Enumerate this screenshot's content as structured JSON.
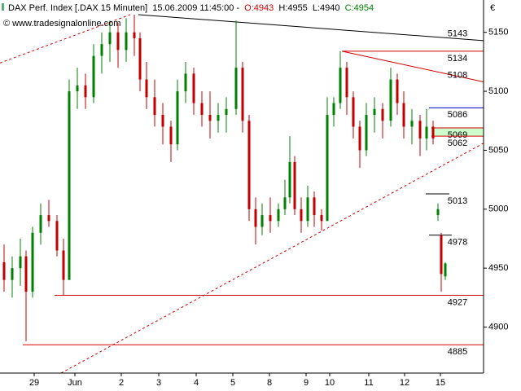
{
  "chart_data": {
    "type": "candlestick",
    "header": {
      "instrument": "DAX Perf. Index [.DAX  15 Minuten]",
      "datetime": "15.06.2009 11:45:00 -",
      "open": "O:4943",
      "high": "H:4955",
      "low": "L:4940",
      "close": "C:4954"
    },
    "watermark": "© www.tradesignalonline.com",
    "currency": "€",
    "up_color": "#008000",
    "down_color": "#c00000",
    "xlim": [
      0,
      594
    ],
    "ylim": [
      4861,
      5165
    ],
    "yticks": [
      4900,
      4950,
      5000,
      5050,
      5100,
      5150
    ],
    "xticks": [
      {
        "value": 42,
        "label": "29"
      },
      {
        "value": 92,
        "label": "Jun"
      },
      {
        "value": 149,
        "label": "2"
      },
      {
        "value": 195,
        "label": "3"
      },
      {
        "value": 241,
        "label": "4"
      },
      {
        "value": 286,
        "label": "5"
      },
      {
        "value": 331,
        "label": "8"
      },
      {
        "value": 376,
        "label": "9"
      },
      {
        "value": 405,
        "label": "10"
      },
      {
        "value": 453,
        "label": "11"
      },
      {
        "value": 497,
        "label": "12"
      },
      {
        "value": 541,
        "label": "15"
      }
    ],
    "x": [
      5,
      15,
      25,
      32,
      40,
      50,
      60,
      70,
      78,
      85,
      95,
      105,
      115,
      125,
      135,
      145,
      155,
      165,
      172,
      180,
      190,
      200,
      210,
      218,
      228,
      238,
      248,
      258,
      268,
      278,
      290,
      298,
      306,
      314,
      322,
      332,
      342,
      350,
      356,
      362,
      370,
      378,
      386,
      395,
      402,
      410,
      418,
      426,
      434,
      442,
      450,
      460,
      470,
      480,
      488,
      496,
      506,
      516,
      524,
      532,
      538,
      542,
      547
    ],
    "open": [
      4955,
      4940,
      4950,
      4960,
      4930,
      4980,
      4995,
      4990,
      4965,
      4940,
      5100,
      5105,
      5095,
      5130,
      5140,
      5150,
      5135,
      5150,
      5145,
      5110,
      5095,
      5080,
      5070,
      5055,
      5100,
      5115,
      5090,
      5080,
      5075,
      5080,
      5085,
      5120,
      5075,
      5000,
      4985,
      4995,
      4990,
      5000,
      5010,
      5040,
      5000,
      4990,
      5010,
      4995,
      4990,
      5080,
      5090,
      5120,
      5095,
      5070,
      5050,
      5080,
      5085,
      5075,
      5110,
      5090,
      5070,
      5075,
      5060,
      5070,
      4995,
      4978,
      4943
    ],
    "high": [
      4970,
      4960,
      4975,
      4965,
      4985,
      5005,
      5008,
      4995,
      4975,
      5110,
      5120,
      5115,
      5140,
      5150,
      5160,
      5158,
      5162,
      5165,
      5150,
      5125,
      5110,
      5090,
      5075,
      5110,
      5125,
      5120,
      5100,
      5100,
      5090,
      5095,
      5160,
      5125,
      5080,
      5010,
      5005,
      5010,
      5005,
      5025,
      5062,
      5045,
      5010,
      5020,
      5015,
      5000,
      5095,
      5095,
      5134,
      5125,
      5100,
      5075,
      5090,
      5095,
      5090,
      5120,
      5115,
      5100,
      5085,
      5080,
      5085,
      5075,
      5005,
      4980,
      4955
    ],
    "low": [
      4930,
      4925,
      4935,
      4888,
      4925,
      4970,
      4985,
      4960,
      4927,
      4940,
      5085,
      5085,
      5090,
      5115,
      5125,
      5120,
      5125,
      5130,
      5100,
      5085,
      5070,
      5055,
      5040,
      5050,
      5090,
      5080,
      5070,
      5060,
      5065,
      5065,
      5080,
      5065,
      4990,
      4970,
      4978,
      4980,
      4985,
      4995,
      5005,
      4995,
      4980,
      4985,
      4985,
      4982,
      4990,
      5070,
      5085,
      5080,
      5060,
      5035,
      5045,
      5065,
      5060,
      5070,
      5080,
      5060,
      5055,
      5045,
      5050,
      5055,
      4990,
      4930,
      4940
    ],
    "close": [
      4940,
      4950,
      4960,
      4930,
      4980,
      4995,
      4990,
      4965,
      4940,
      5100,
      5105,
      5095,
      5130,
      5140,
      5150,
      5135,
      5150,
      5145,
      5110,
      5095,
      5080,
      5070,
      5055,
      5100,
      5115,
      5090,
      5080,
      5075,
      5080,
      5085,
      5120,
      5075,
      5000,
      4985,
      4995,
      4990,
      5000,
      5010,
      5040,
      5000,
      4990,
      5010,
      4995,
      4990,
      5080,
      5090,
      5120,
      5095,
      5070,
      5050,
      5080,
      5085,
      5075,
      5110,
      5090,
      5070,
      5075,
      5060,
      5070,
      5060,
      5000,
      4945,
      4954
    ],
    "levels": [
      {
        "value": 5134,
        "x": [
          420,
          594
        ],
        "color": "#d00000",
        "label_color": "#d00000"
      },
      {
        "value": 5086,
        "x": [
          527,
          594
        ],
        "color": "#0000c0",
        "label_color": "#0000c0"
      },
      {
        "value": 5069,
        "x": [
          530,
          594
        ],
        "color": "#d00000",
        "label_color": "#d00000"
      },
      {
        "value": 5062,
        "x": [
          530,
          594
        ],
        "color": "#d00000",
        "label_color": "#d00000"
      },
      {
        "value": 5013,
        "x": [
          523,
          552
        ],
        "color": "#000000",
        "label_color": "#000000"
      },
      {
        "value": 4978,
        "x": [
          527,
          555
        ],
        "color": "#000000",
        "label_color": "#000000"
      },
      {
        "value": 4927,
        "x": [
          67,
          594
        ],
        "color": "#d00000",
        "label_color": "#d00000"
      },
      {
        "value": 4885,
        "x": [
          28,
          594
        ],
        "color": "#d00000",
        "label_color": "#d00000"
      }
    ],
    "zone": {
      "y": [
        5062,
        5069
      ],
      "x": [
        530,
        594
      ],
      "color": "#ccffcc"
    },
    "trendlines": [
      {
        "x": [
          170,
          594
        ],
        "y": [
          5165,
          5143
        ],
        "color": "#000000",
        "labelled": true
      },
      {
        "x": [
          420,
          594
        ],
        "y": [
          5134,
          5108
        ],
        "color": "#d00000",
        "labelled": true
      },
      {
        "x": [
          75,
          594
        ],
        "y": [
          4861,
          5056
        ],
        "color": "#d00000",
        "dashed": true
      },
      {
        "x": [
          0,
          160
        ],
        "y": [
          5124,
          5165
        ],
        "color": "#d00000",
        "dashed": true
      }
    ]
  }
}
